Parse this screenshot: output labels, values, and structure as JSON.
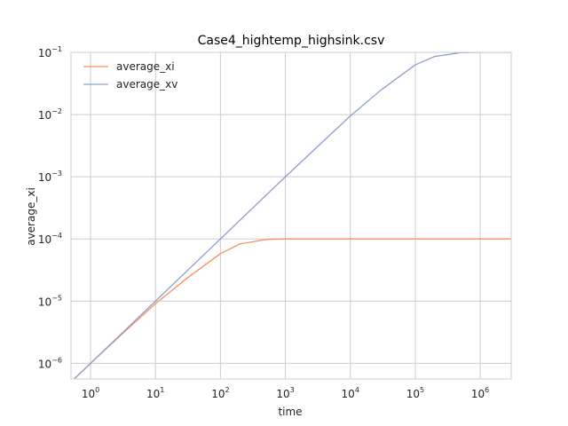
{
  "chart_data": {
    "type": "line",
    "title": "Case4_hightemp_highsink.csv",
    "xlabel": "time",
    "ylabel": "average_xi",
    "xscale": "log",
    "yscale": "log",
    "xlim": [
      0.5,
      3000000
    ],
    "ylim": [
      5.6e-07,
      0.1
    ],
    "xticks": [
      {
        "base": "10",
        "exp": "0"
      },
      {
        "base": "10",
        "exp": "1"
      },
      {
        "base": "10",
        "exp": "2"
      },
      {
        "base": "10",
        "exp": "3"
      },
      {
        "base": "10",
        "exp": "4"
      },
      {
        "base": "10",
        "exp": "5"
      },
      {
        "base": "10",
        "exp": "6"
      }
    ],
    "yticks": [
      {
        "base": "10",
        "exp": "−6"
      },
      {
        "base": "10",
        "exp": "−5"
      },
      {
        "base": "10",
        "exp": "−4"
      },
      {
        "base": "10",
        "exp": "−3"
      },
      {
        "base": "10",
        "exp": "−2"
      },
      {
        "base": "10",
        "exp": "−1"
      }
    ],
    "grid": true,
    "legend": "upper-left",
    "series": [
      {
        "name": "average_xi",
        "color": "#fc8d62",
        "x": [
          0.5,
          1,
          3,
          10,
          30,
          100,
          200,
          500,
          1000,
          10000,
          100000,
          1000000,
          3000000
        ],
        "y": [
          5e-07,
          1e-06,
          2.9e-06,
          9.1e-06,
          2.3e-05,
          5.8e-05,
          8.3e-05,
          9.8e-05,
          0.0001,
          0.0001,
          0.0001,
          0.0001,
          0.0001
        ]
      },
      {
        "name": "average_xv",
        "color": "#8da0cb",
        "x": [
          0.5,
          1,
          10,
          100,
          1000,
          10000,
          30000,
          100000,
          200000,
          500000,
          1000000,
          3000000
        ],
        "y": [
          5e-07,
          1e-06,
          1e-05,
          0.0001,
          0.001,
          0.0095,
          0.025,
          0.063,
          0.086,
          0.099,
          0.1,
          0.1
        ]
      }
    ]
  }
}
